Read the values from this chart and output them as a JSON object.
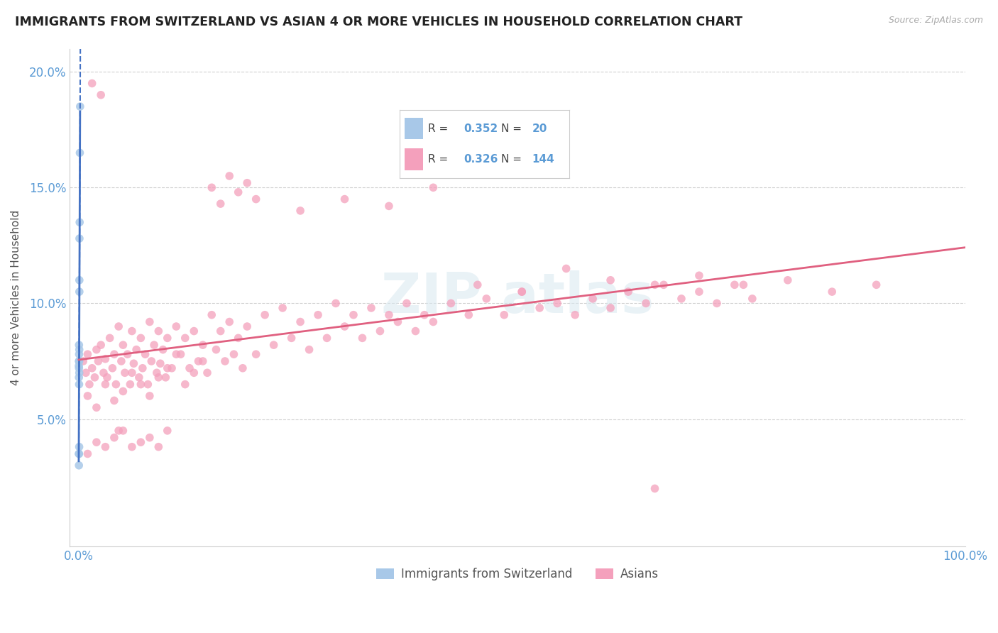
{
  "title": "IMMIGRANTS FROM SWITZERLAND VS ASIAN 4 OR MORE VEHICLES IN HOUSEHOLD CORRELATION CHART",
  "source": "Source: ZipAtlas.com",
  "ylabel": "4 or more Vehicles in Household",
  "legend1_label": "Immigrants from Switzerland",
  "legend2_label": "Asians",
  "R1": 0.352,
  "N1": 20,
  "R2": 0.326,
  "N2": 144,
  "color_swiss": "#a8c8e8",
  "color_asian": "#f4a0bc",
  "color_swiss_line": "#4472c4",
  "color_asian_line": "#e06080",
  "watermark_text": "ZIP atlas",
  "swiss_x": [
    0.0001,
    0.0001,
    0.0002,
    0.0002,
    0.0002,
    0.0003,
    0.0003,
    0.0003,
    0.0004,
    0.0004,
    0.0005,
    0.0005,
    0.0006,
    0.0006,
    0.0007,
    0.0007,
    0.0008,
    0.001,
    0.0012,
    0.0015
  ],
  "swiss_y": [
    0.073,
    0.035,
    0.075,
    0.068,
    0.03,
    0.082,
    0.072,
    0.035,
    0.078,
    0.065,
    0.075,
    0.038,
    0.08,
    0.07,
    0.11,
    0.105,
    0.128,
    0.135,
    0.165,
    0.185
  ],
  "asian_x": [
    0.005,
    0.008,
    0.01,
    0.012,
    0.015,
    0.018,
    0.02,
    0.022,
    0.025,
    0.028,
    0.03,
    0.032,
    0.035,
    0.038,
    0.04,
    0.042,
    0.045,
    0.048,
    0.05,
    0.052,
    0.055,
    0.058,
    0.06,
    0.062,
    0.065,
    0.068,
    0.07,
    0.072,
    0.075,
    0.078,
    0.08,
    0.082,
    0.085,
    0.088,
    0.09,
    0.092,
    0.095,
    0.098,
    0.1,
    0.105,
    0.11,
    0.115,
    0.12,
    0.125,
    0.13,
    0.135,
    0.14,
    0.145,
    0.15,
    0.155,
    0.16,
    0.165,
    0.17,
    0.175,
    0.18,
    0.185,
    0.19,
    0.2,
    0.21,
    0.22,
    0.23,
    0.24,
    0.25,
    0.26,
    0.27,
    0.28,
    0.29,
    0.3,
    0.31,
    0.32,
    0.33,
    0.34,
    0.35,
    0.36,
    0.37,
    0.38,
    0.39,
    0.4,
    0.42,
    0.44,
    0.46,
    0.48,
    0.5,
    0.52,
    0.54,
    0.56,
    0.58,
    0.6,
    0.62,
    0.64,
    0.66,
    0.68,
    0.7,
    0.72,
    0.74,
    0.76,
    0.01,
    0.02,
    0.03,
    0.04,
    0.05,
    0.06,
    0.07,
    0.08,
    0.09,
    0.1,
    0.11,
    0.12,
    0.13,
    0.14,
    0.15,
    0.16,
    0.17,
    0.18,
    0.19,
    0.2,
    0.25,
    0.3,
    0.35,
    0.4,
    0.45,
    0.5,
    0.55,
    0.6,
    0.65,
    0.7,
    0.75,
    0.8,
    0.85,
    0.9,
    0.01,
    0.02,
    0.03,
    0.04,
    0.05,
    0.06,
    0.07,
    0.08,
    0.09,
    0.1,
    0.65,
    0.015,
    0.025,
    0.045
  ],
  "asian_y": [
    0.075,
    0.07,
    0.078,
    0.065,
    0.072,
    0.068,
    0.08,
    0.075,
    0.082,
    0.07,
    0.076,
    0.068,
    0.085,
    0.072,
    0.078,
    0.065,
    0.09,
    0.075,
    0.082,
    0.07,
    0.078,
    0.065,
    0.088,
    0.074,
    0.08,
    0.068,
    0.085,
    0.072,
    0.078,
    0.065,
    0.092,
    0.075,
    0.082,
    0.07,
    0.088,
    0.074,
    0.08,
    0.068,
    0.085,
    0.072,
    0.09,
    0.078,
    0.085,
    0.072,
    0.088,
    0.075,
    0.082,
    0.07,
    0.095,
    0.08,
    0.088,
    0.075,
    0.092,
    0.078,
    0.085,
    0.072,
    0.09,
    0.078,
    0.095,
    0.082,
    0.098,
    0.085,
    0.092,
    0.08,
    0.095,
    0.085,
    0.1,
    0.09,
    0.095,
    0.085,
    0.098,
    0.088,
    0.095,
    0.092,
    0.1,
    0.088,
    0.095,
    0.092,
    0.1,
    0.095,
    0.102,
    0.095,
    0.105,
    0.098,
    0.1,
    0.095,
    0.102,
    0.098,
    0.105,
    0.1,
    0.108,
    0.102,
    0.105,
    0.1,
    0.108,
    0.102,
    0.06,
    0.055,
    0.065,
    0.058,
    0.062,
    0.07,
    0.065,
    0.06,
    0.068,
    0.072,
    0.078,
    0.065,
    0.07,
    0.075,
    0.15,
    0.143,
    0.155,
    0.148,
    0.152,
    0.145,
    0.14,
    0.145,
    0.142,
    0.15,
    0.108,
    0.105,
    0.115,
    0.11,
    0.108,
    0.112,
    0.108,
    0.11,
    0.105,
    0.108,
    0.035,
    0.04,
    0.038,
    0.042,
    0.045,
    0.038,
    0.04,
    0.042,
    0.038,
    0.045,
    0.02,
    0.195,
    0.19,
    0.045
  ],
  "xmin": 0.0,
  "xmax": 1.0,
  "ymin": 0.0,
  "ymax": 0.21,
  "ytick_vals": [
    0.05,
    0.1,
    0.15,
    0.2
  ],
  "ytick_labels": [
    "5.0%",
    "10.0%",
    "15.0%",
    "20.0%"
  ],
  "xtick_vals": [
    0.0,
    1.0
  ],
  "xtick_labels": [
    "0.0%",
    "100.0%"
  ]
}
